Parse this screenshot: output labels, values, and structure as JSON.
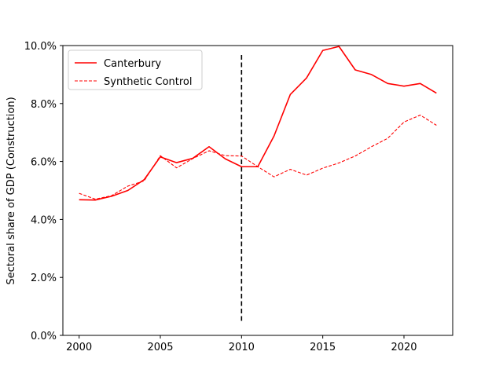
{
  "chart_data": {
    "type": "line",
    "title": "",
    "xlabel": "",
    "ylabel": "Sectoral share of GDP (Construction)",
    "xlim": [
      1999,
      2023
    ],
    "ylim": [
      0.0,
      10.0
    ],
    "x_ticks": [
      2000,
      2005,
      2010,
      2015,
      2020
    ],
    "x_tick_labels": [
      "2000",
      "2005",
      "2010",
      "2015",
      "2020"
    ],
    "y_ticks": [
      0,
      2,
      4,
      6,
      8,
      10
    ],
    "y_tick_labels": [
      "0.0%",
      "2.0%",
      "4.0%",
      "6.0%",
      "8.0%",
      "10.0%"
    ],
    "grid": false,
    "legend_position": "top-left",
    "x": [
      2000,
      2001,
      2002,
      2003,
      2004,
      2005,
      2006,
      2007,
      2008,
      2009,
      2010,
      2011,
      2012,
      2013,
      2014,
      2015,
      2016,
      2017,
      2018,
      2019,
      2020,
      2021,
      2022
    ],
    "series": [
      {
        "name": "Canterbury",
        "style": "solid",
        "color": "#ff0000",
        "values": [
          4.68,
          4.67,
          4.8,
          5.0,
          5.37,
          6.16,
          5.96,
          6.11,
          6.51,
          6.09,
          5.82,
          5.82,
          6.88,
          8.31,
          8.88,
          9.83,
          9.97,
          9.16,
          9.0,
          8.69,
          8.6,
          8.69,
          8.36
        ]
      },
      {
        "name": "Synthetic Control",
        "style": "dashed",
        "color": "#ff0000",
        "values": [
          4.9,
          4.7,
          4.82,
          5.15,
          5.33,
          6.2,
          5.78,
          6.1,
          6.37,
          6.2,
          6.19,
          5.82,
          5.47,
          5.73,
          5.53,
          5.77,
          5.95,
          6.19,
          6.51,
          6.8,
          7.36,
          7.6,
          7.25
        ]
      }
    ],
    "annotations": [
      {
        "kind": "vertical-dashed-line",
        "x": 2010,
        "y_from": 0.5,
        "y_to": 9.7,
        "color": "#000000"
      }
    ]
  }
}
